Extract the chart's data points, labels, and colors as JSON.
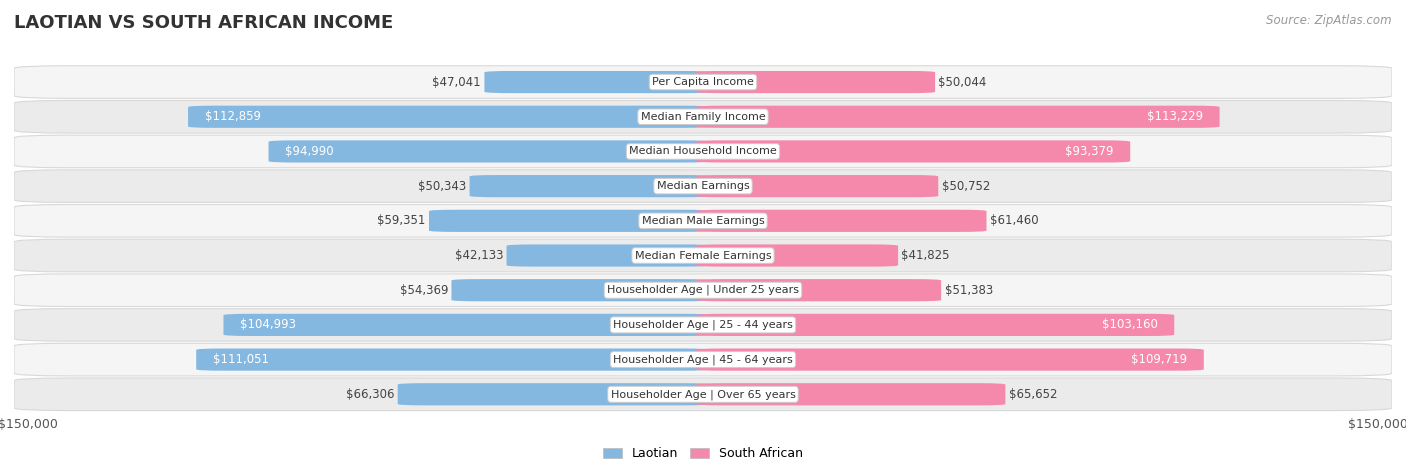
{
  "title": "LAOTIAN VS SOUTH AFRICAN INCOME",
  "source": "Source: ZipAtlas.com",
  "categories": [
    "Per Capita Income",
    "Median Family Income",
    "Median Household Income",
    "Median Earnings",
    "Median Male Earnings",
    "Median Female Earnings",
    "Householder Age | Under 25 years",
    "Householder Age | 25 - 44 years",
    "Householder Age | 45 - 64 years",
    "Householder Age | Over 65 years"
  ],
  "laotian_values": [
    47041,
    112859,
    94990,
    50343,
    59351,
    42133,
    54369,
    104993,
    111051,
    66306
  ],
  "south_african_values": [
    50044,
    113229,
    93379,
    50752,
    61460,
    41825,
    51383,
    103160,
    109719,
    65652
  ],
  "laotian_labels": [
    "$47,041",
    "$112,859",
    "$94,990",
    "$50,343",
    "$59,351",
    "$42,133",
    "$54,369",
    "$104,993",
    "$111,051",
    "$66,306"
  ],
  "south_african_labels": [
    "$50,044",
    "$113,229",
    "$93,379",
    "$50,752",
    "$61,460",
    "$41,825",
    "$51,383",
    "$103,160",
    "$109,719",
    "$65,652"
  ],
  "laotian_color": "#85b8e0",
  "south_african_color": "#f589ab",
  "label_color_light": "#444444",
  "label_color_white": "#ffffff",
  "max_value": 150000,
  "bar_height": 0.62,
  "row_bg_even": "#f5f5f5",
  "row_bg_odd": "#ebebeb",
  "row_border": "#d8d8d8",
  "background_color": "#ffffff",
  "xlabel_left": "$150,000",
  "xlabel_right": "$150,000",
  "legend_laotian": "Laotian",
  "legend_south_african": "South African",
  "white_label_threshold": 72000,
  "title_fontsize": 13,
  "label_fontsize": 8.5,
  "cat_fontsize": 8.0
}
